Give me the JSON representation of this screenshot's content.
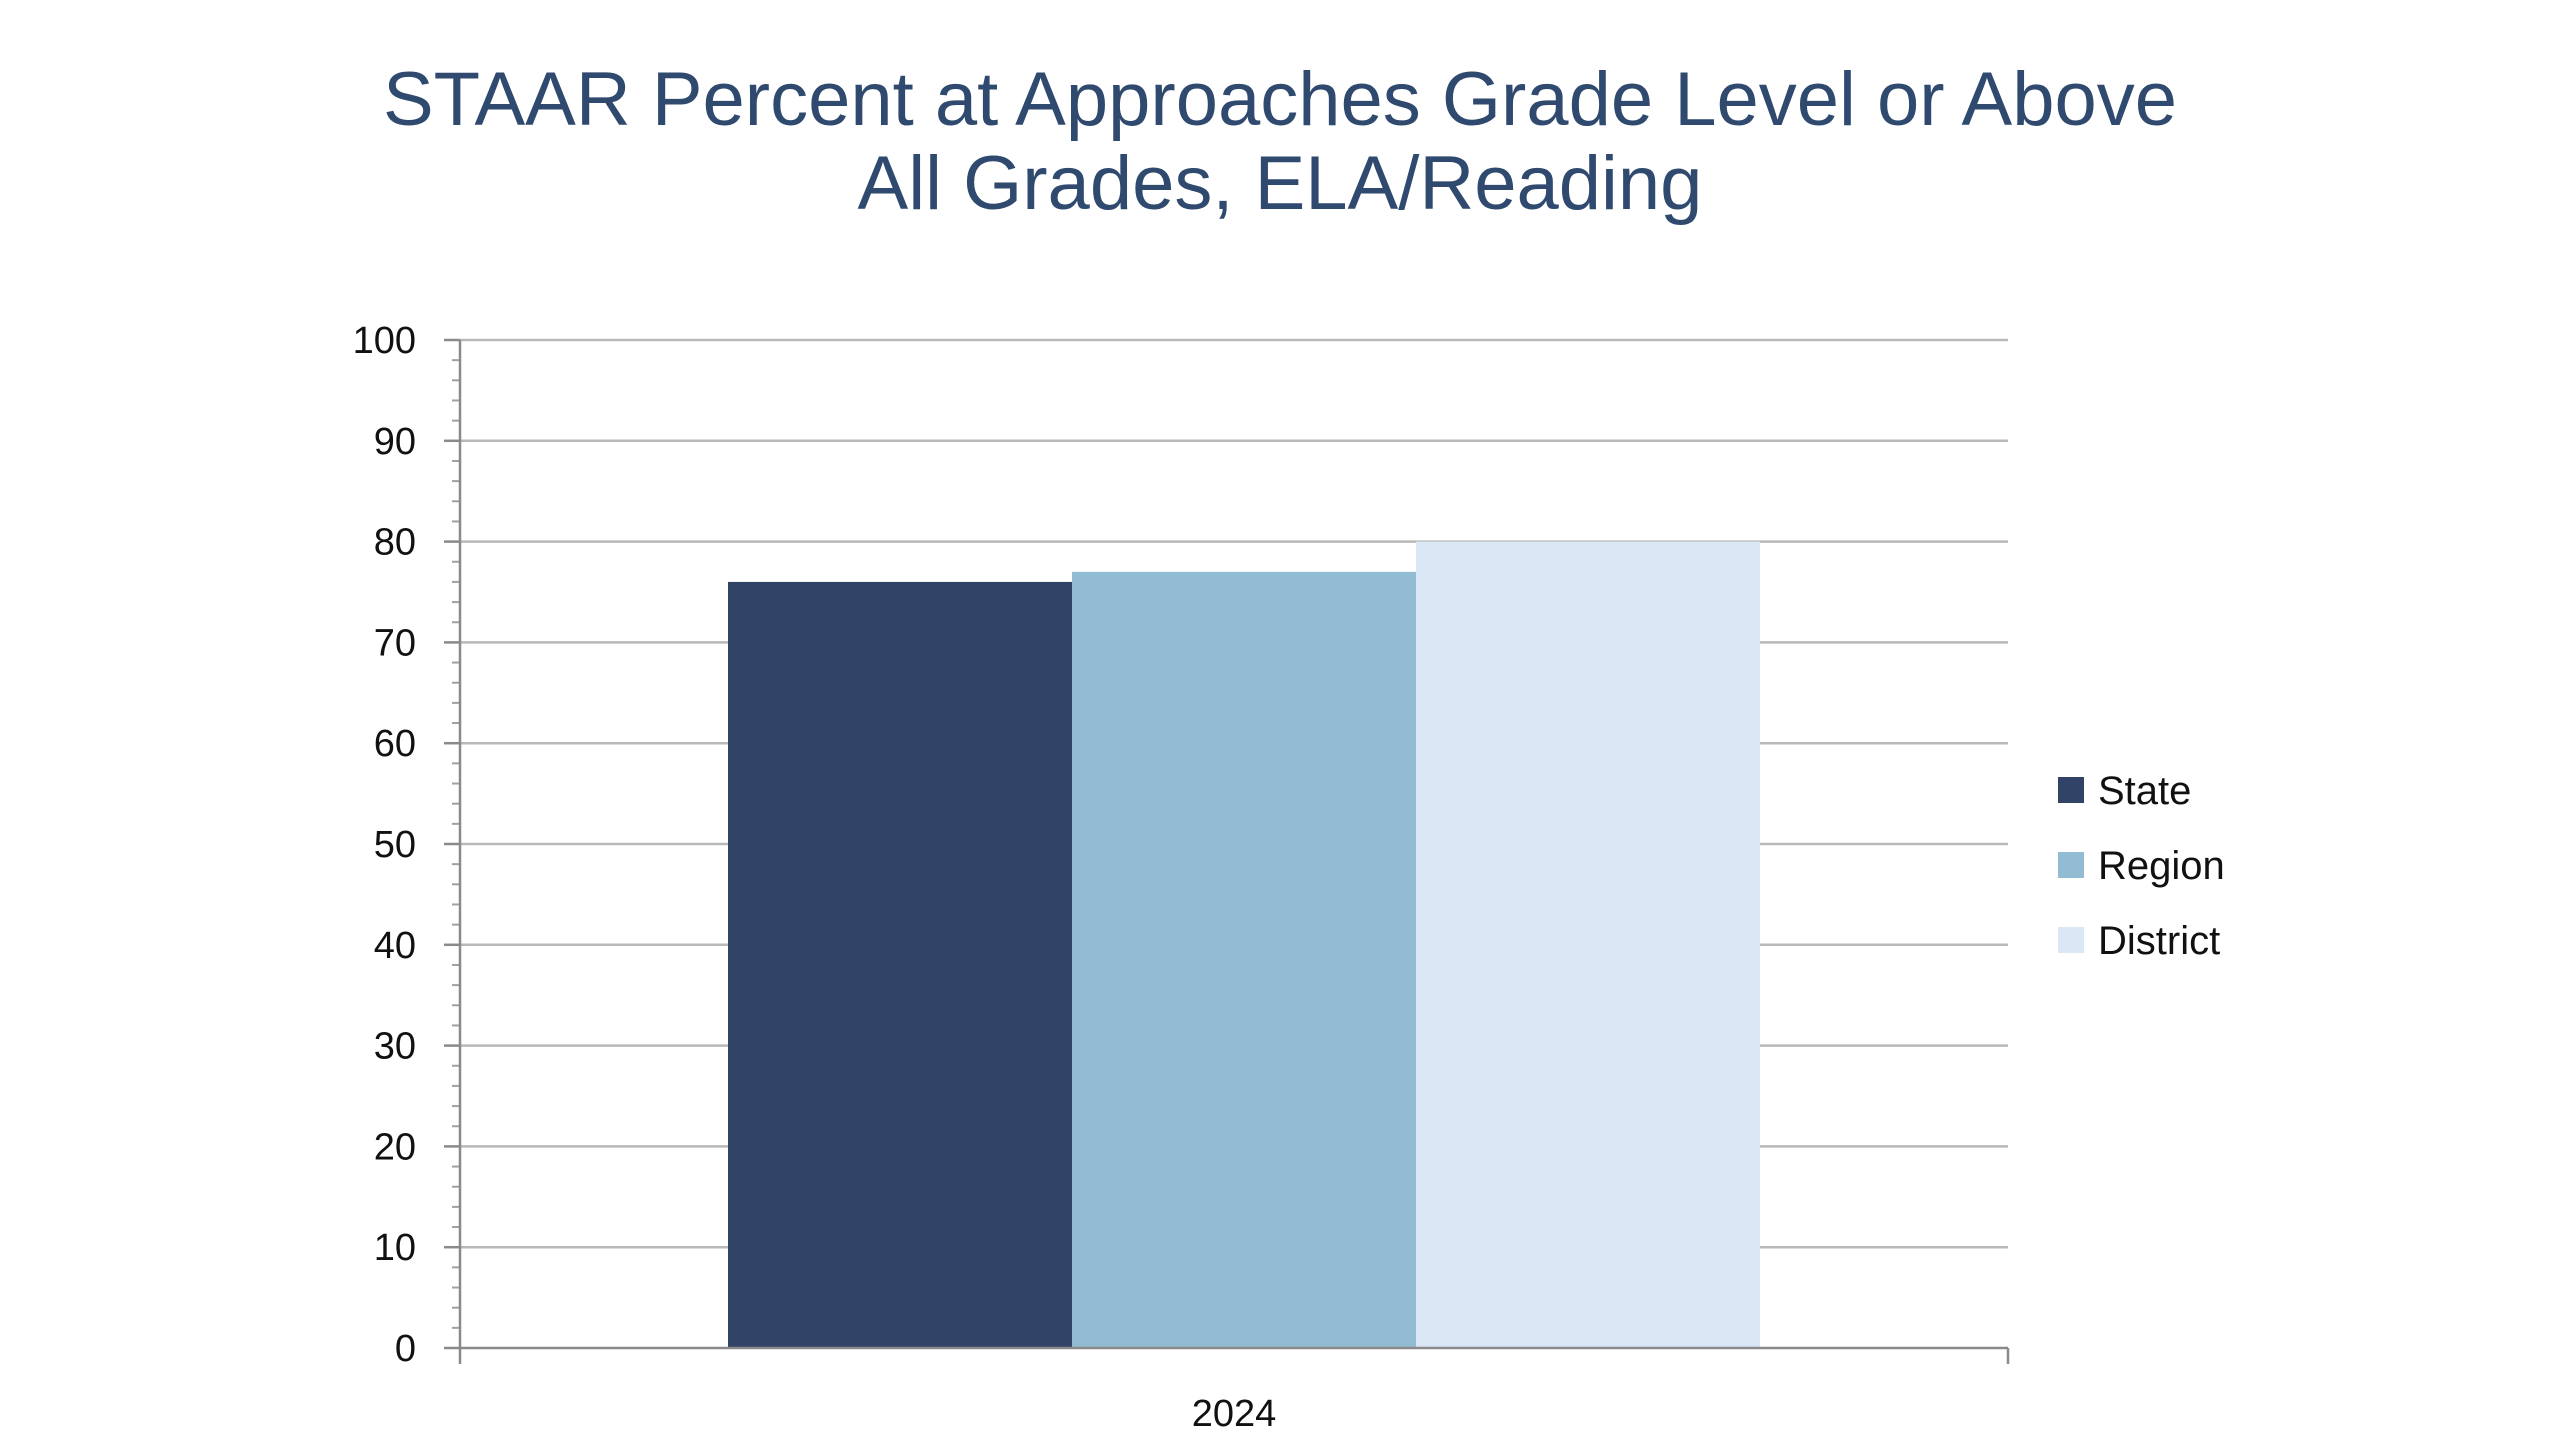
{
  "chart_data": {
    "type": "bar",
    "title": "STAAR Percent at Approaches Grade Level or Above",
    "subtitle": "All Grades, ELA/Reading",
    "categories": [
      "2024"
    ],
    "series": [
      {
        "name": "State",
        "values": [
          76
        ],
        "color": "#314366"
      },
      {
        "name": "Region",
        "values": [
          77
        ],
        "color": "#92bcd3"
      },
      {
        "name": "District",
        "values": [
          80
        ],
        "color": "#dae8f5"
      }
    ],
    "ylim": [
      0,
      100
    ],
    "yticks": [
      "0",
      "10",
      "20",
      "30",
      "40",
      "50",
      "60",
      "70",
      "80",
      "90",
      "100"
    ],
    "grid": true,
    "legend_position": "right",
    "xlabel": "",
    "ylabel": ""
  }
}
